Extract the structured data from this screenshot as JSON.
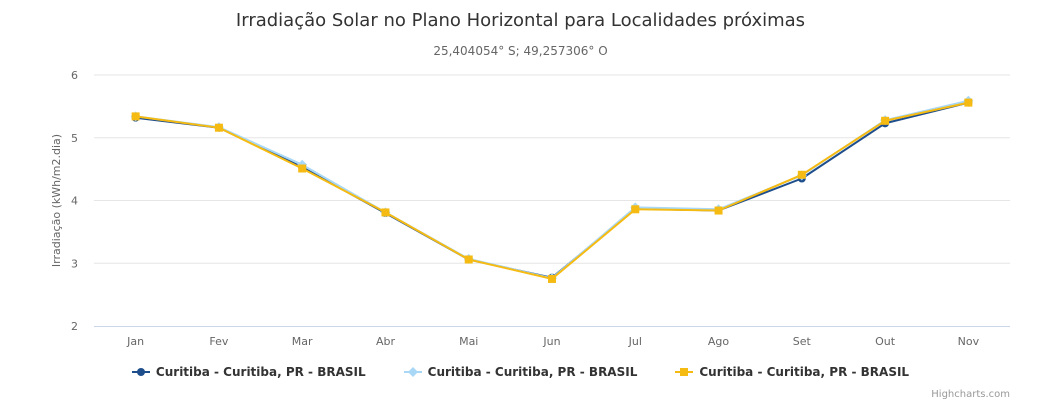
{
  "title": "Irradiação Solar no Plano Horizontal para Localidades próximas",
  "subtitle": "25,404054° S; 49,257306° O",
  "credits": "Highcharts.com",
  "chart_data": {
    "type": "line",
    "categories": [
      "Jan",
      "Fev",
      "Mar",
      "Abr",
      "Mai",
      "Jun",
      "Jul",
      "Ago",
      "Set",
      "Out",
      "Nov"
    ],
    "ylabel": "Irradiação (kWh/m2.dia)",
    "ylim": [
      2,
      6
    ],
    "yticks": [
      2,
      3,
      4,
      5,
      6
    ],
    "grid": true,
    "legend_position": "bottom-center",
    "series": [
      {
        "name": "Curitiba - Curitiba, PR - BRASIL",
        "color": "#1f4e8c",
        "marker": "circle",
        "values": [
          5.32,
          5.16,
          4.53,
          3.8,
          3.06,
          2.77,
          3.87,
          3.84,
          4.35,
          5.23,
          5.56
        ]
      },
      {
        "name": "Curitiba - Curitiba, PR - BRASIL",
        "color": "#a8d8f5",
        "marker": "diamond",
        "values": [
          5.34,
          5.17,
          4.57,
          3.81,
          3.07,
          2.76,
          3.89,
          3.86,
          4.4,
          5.28,
          5.59
        ]
      },
      {
        "name": "Curitiba - Curitiba, PR - BRASIL",
        "color": "#f6bb12",
        "marker": "square",
        "values": [
          5.34,
          5.16,
          4.51,
          3.81,
          3.06,
          2.75,
          3.86,
          3.84,
          4.41,
          5.27,
          5.56
        ]
      }
    ]
  }
}
